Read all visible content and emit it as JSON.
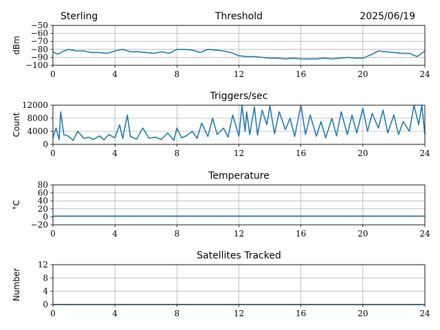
{
  "header": {
    "station": "Sterling",
    "date": "2025/06/19"
  },
  "line_color": "#1f77b4",
  "chart_data": [
    {
      "type": "line",
      "title": "Threshold",
      "xlabel": "",
      "ylabel": "dBm",
      "xlim": [
        0,
        24
      ],
      "ylim": [
        -100,
        -50
      ],
      "xticks": [
        0,
        4,
        8,
        12,
        16,
        20,
        24
      ],
      "yticks": [
        -100,
        -90,
        -80,
        -70,
        -60,
        -50
      ],
      "grid": true,
      "series": [
        {
          "x": [
            0,
            0.3,
            0.6,
            1.0,
            1.5,
            2.0,
            2.5,
            3.0,
            3.5,
            4.0,
            4.5,
            5.0,
            5.5,
            6.0,
            6.5,
            7.0,
            7.5,
            8.0,
            8.5,
            9.0,
            9.5,
            10.0,
            10.5,
            11.0,
            11.5,
            12.0,
            12.5,
            13.0,
            13.5,
            14.0,
            14.5,
            15.0,
            15.5,
            16.0,
            16.5,
            17.0,
            17.5,
            18.0,
            18.5,
            19.0,
            19.5,
            20.0,
            20.5,
            21.0,
            21.5,
            22.0,
            22.5,
            23.0,
            23.5,
            24.0
          ],
          "y": [
            -83,
            -86,
            -83,
            -80,
            -82,
            -82,
            -84,
            -84,
            -85,
            -82,
            -80,
            -83,
            -83,
            -84,
            -85,
            -83,
            -85,
            -80,
            -80,
            -81,
            -84,
            -80,
            -81,
            -82,
            -84,
            -88,
            -89,
            -89,
            -90,
            -91,
            -91,
            -92,
            -91,
            -92,
            -92,
            -92,
            -91,
            -92,
            -91,
            -90,
            -91,
            -91,
            -87,
            -82,
            -83,
            -84,
            -85,
            -85,
            -89,
            -82
          ]
        }
      ]
    },
    {
      "type": "line",
      "title": "Triggers/sec",
      "xlabel": "",
      "ylabel": "Count",
      "xlim": [
        0,
        24
      ],
      "ylim": [
        0,
        12000
      ],
      "xticks": [
        0,
        4,
        8,
        12,
        16,
        20,
        24
      ],
      "yticks": [
        0,
        4000,
        8000,
        12000
      ],
      "grid": true,
      "series": [
        {
          "x": [
            0,
            0.2,
            0.4,
            0.5,
            0.7,
            1.0,
            1.3,
            1.6,
            2.0,
            2.3,
            2.6,
            3.0,
            3.3,
            3.6,
            4.0,
            4.3,
            4.5,
            4.8,
            5.0,
            5.4,
            5.8,
            6.2,
            6.6,
            7.0,
            7.4,
            7.8,
            8.0,
            8.3,
            8.6,
            9.0,
            9.3,
            9.6,
            10.0,
            10.3,
            10.6,
            11.0,
            11.3,
            11.6,
            12.0,
            12.2,
            12.4,
            12.5,
            12.7,
            13.0,
            13.2,
            13.5,
            13.8,
            14.0,
            14.3,
            14.6,
            15.0,
            15.3,
            15.6,
            16.0,
            16.3,
            16.6,
            17.0,
            17.3,
            17.6,
            18.0,
            18.3,
            18.6,
            19.0,
            19.3,
            19.6,
            20.0,
            20.3,
            20.6,
            21.0,
            21.3,
            21.6,
            22.0,
            22.3,
            22.6,
            23.0,
            23.3,
            23.6,
            23.8,
            24.0
          ],
          "y": [
            2000,
            5000,
            1500,
            10000,
            3000,
            2500,
            1200,
            4000,
            1800,
            2200,
            1500,
            2600,
            1400,
            3000,
            2000,
            6000,
            1800,
            9000,
            2400,
            1600,
            5000,
            1900,
            2200,
            1500,
            3500,
            1200,
            5000,
            2000,
            2600,
            4000,
            1800,
            6500,
            2400,
            8000,
            3000,
            5000,
            2200,
            9000,
            2500,
            12000,
            4000,
            10000,
            3000,
            11500,
            2800,
            10500,
            6000,
            11800,
            3200,
            10000,
            4500,
            8000,
            2400,
            12000,
            3000,
            9000,
            2500,
            7000,
            2000,
            8000,
            2600,
            10000,
            3000,
            9000,
            3500,
            11000,
            4000,
            9500,
            5000,
            10500,
            3500,
            9000,
            3000,
            7000,
            4000,
            12000,
            6000,
            12000,
            3000
          ]
        }
      ]
    },
    {
      "type": "line",
      "title": "Temperature",
      "xlabel": "",
      "ylabel": "°C",
      "xlim": [
        0,
        24
      ],
      "ylim": [
        -20,
        80
      ],
      "xticks": [
        0,
        4,
        8,
        12,
        16,
        20,
        24
      ],
      "yticks": [
        -20,
        0,
        20,
        40,
        60,
        80
      ],
      "grid": true,
      "series": [
        {
          "x": [
            0,
            24
          ],
          "y": [
            2,
            2
          ]
        }
      ]
    },
    {
      "type": "line",
      "title": "Satellites Tracked",
      "xlabel": "",
      "ylabel": "Number",
      "xlim": [
        0,
        24
      ],
      "ylim": [
        0,
        12
      ],
      "xticks": [
        0,
        4,
        8,
        12,
        16,
        20,
        24
      ],
      "yticks": [
        0,
        4,
        8,
        12
      ],
      "grid": true,
      "series": [
        {
          "x": [
            0,
            24
          ],
          "y": [
            0,
            0
          ]
        }
      ]
    }
  ]
}
